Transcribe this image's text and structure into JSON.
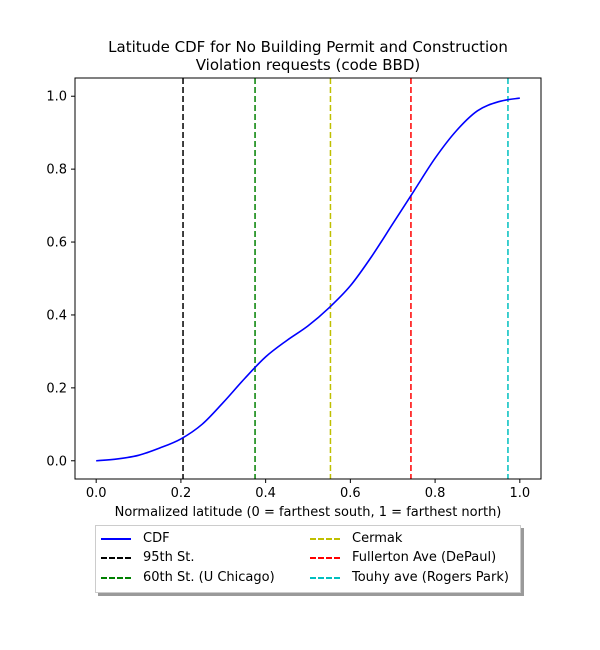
{
  "chart_data": {
    "type": "line",
    "title_lines": [
      "Latitude CDF for No Building Permit and Construction",
      "Violation  requests (code BBD)"
    ],
    "xlabel": "Normalized latitude (0 = farthest south, 1 = farthest north)",
    "ylabel": "",
    "xlim": [
      -0.05,
      1.05
    ],
    "ylim": [
      -0.05,
      1.05
    ],
    "xticks": [
      0.0,
      0.2,
      0.4,
      0.6,
      0.8,
      1.0
    ],
    "xtick_labels": [
      "0.0",
      "0.2",
      "0.4",
      "0.6",
      "0.8",
      "1.0"
    ],
    "yticks": [
      0.0,
      0.2,
      0.4,
      0.6,
      0.8,
      1.0
    ],
    "ytick_labels": [
      "0.0",
      "0.2",
      "0.4",
      "0.6",
      "0.8",
      "1.0"
    ],
    "grid": false,
    "legend_placement": "below plot, two columns",
    "series": [
      {
        "name": "CDF",
        "color": "#0000ff",
        "style": "solid",
        "x": [
          0.0,
          0.05,
          0.1,
          0.15,
          0.2,
          0.25,
          0.3,
          0.35,
          0.4,
          0.45,
          0.5,
          0.55,
          0.6,
          0.65,
          0.7,
          0.75,
          0.8,
          0.85,
          0.9,
          0.95,
          1.0
        ],
        "y": [
          0.0,
          0.005,
          0.015,
          0.035,
          0.06,
          0.1,
          0.16,
          0.225,
          0.285,
          0.33,
          0.37,
          0.42,
          0.48,
          0.56,
          0.65,
          0.74,
          0.83,
          0.905,
          0.96,
          0.985,
          0.995
        ]
      }
    ],
    "vlines": [
      {
        "name": "95th St.",
        "x": 0.205,
        "color": "#000000"
      },
      {
        "name": "60th St. (U Chicago)",
        "x": 0.375,
        "color": "#008000"
      },
      {
        "name": "Cermak",
        "x": 0.553,
        "color": "#bfbf00"
      },
      {
        "name": "Fullerton Ave (DePaul)",
        "x": 0.743,
        "color": "#ff0000"
      },
      {
        "name": "Touhy ave (Rogers Park)",
        "x": 0.972,
        "color": "#00bfbf"
      }
    ],
    "legend": [
      {
        "label": "CDF",
        "color": "#0000ff",
        "style": "solid"
      },
      {
        "label": "95th St.",
        "color": "#000000",
        "style": "dashed"
      },
      {
        "label": "60th St. (U Chicago)",
        "color": "#008000",
        "style": "dashed"
      },
      {
        "label": "Cermak",
        "color": "#bfbf00",
        "style": "dashed"
      },
      {
        "label": "Fullerton Ave (DePaul)",
        "color": "#ff0000",
        "style": "dashed"
      },
      {
        "label": "Touhy ave (Rogers Park)",
        "color": "#00bfbf",
        "style": "dashed"
      }
    ]
  }
}
